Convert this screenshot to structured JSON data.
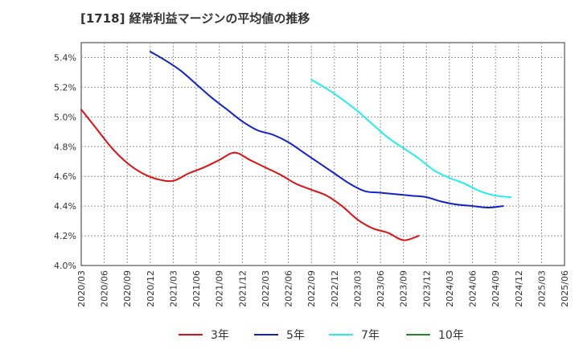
{
  "title": "[1718]  経常利益マージンの平均値の推移",
  "chart_data": {
    "type": "line",
    "title": "[1718]  経常利益マージンの平均値の推移",
    "xlabel": "",
    "ylabel": "",
    "x_ticks": [
      "2020/03",
      "2020/06",
      "2020/09",
      "2020/12",
      "2021/03",
      "2021/06",
      "2021/09",
      "2021/12",
      "2022/03",
      "2022/06",
      "2022/09",
      "2022/12",
      "2023/03",
      "2023/06",
      "2023/09",
      "2023/12",
      "2024/03",
      "2024/06",
      "2024/09",
      "2024/12",
      "2025/03",
      "2025/06"
    ],
    "y_ticks": [
      "4.0%",
      "4.2%",
      "4.4%",
      "4.6%",
      "4.8%",
      "5.0%",
      "5.2%",
      "5.4%"
    ],
    "ylim": [
      4.0,
      5.5
    ],
    "grid": true,
    "legend_position": "bottom",
    "series": [
      {
        "name": "3年",
        "color": "#dd1111",
        "start_index": 0,
        "values": [
          5.05,
          4.92,
          4.79,
          4.69,
          4.62,
          4.58,
          4.57,
          4.62,
          4.66,
          4.71,
          4.76,
          4.71,
          4.66,
          4.61,
          4.55,
          4.51,
          4.47,
          4.4,
          4.31,
          4.25,
          4.22,
          4.17,
          4.2
        ]
      },
      {
        "name": "5年",
        "color": "#1122cc",
        "start_index": 3,
        "values": [
          5.44,
          5.38,
          5.31,
          5.22,
          5.13,
          5.05,
          4.97,
          4.91,
          4.88,
          4.83,
          4.76,
          4.69,
          4.62,
          4.55,
          4.5,
          4.49,
          4.48,
          4.47,
          4.46,
          4.43,
          4.41,
          4.4,
          4.39,
          4.4
        ]
      },
      {
        "name": "7年",
        "color": "#22eeee",
        "start_index": 10,
        "values": [
          5.25,
          5.19,
          5.12,
          5.04,
          4.95,
          4.86,
          4.79,
          4.72,
          4.64,
          4.59,
          4.55,
          4.5,
          4.47,
          4.46
        ]
      },
      {
        "name": "10年",
        "color": "#228822",
        "start_index": 0,
        "values": []
      }
    ]
  }
}
